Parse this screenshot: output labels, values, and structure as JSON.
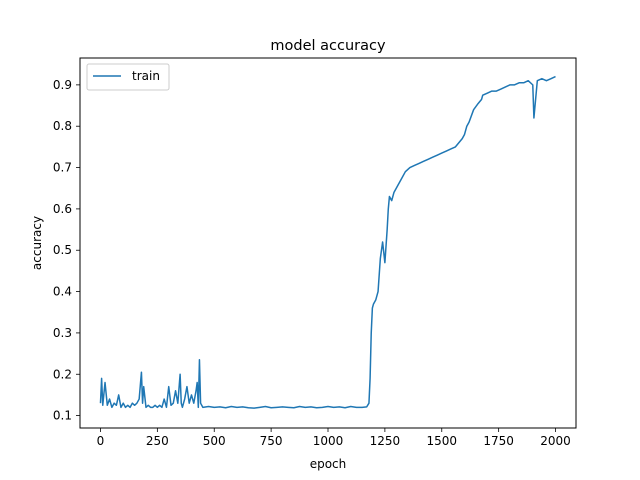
{
  "chart_data": {
    "type": "line",
    "title": "model accuracy",
    "xlabel": "epoch",
    "ylabel": "accuracy",
    "xlim": [
      -90,
      2090
    ],
    "ylim": [
      0.07,
      0.965
    ],
    "xticks": [
      0,
      250,
      500,
      750,
      1000,
      1250,
      1500,
      1750,
      2000
    ],
    "yticks": [
      0.1,
      0.2,
      0.3,
      0.4,
      0.5,
      0.6,
      0.7,
      0.8,
      0.9
    ],
    "ytick_labels": [
      "0.1",
      "0.2",
      "0.3",
      "0.4",
      "0.5",
      "0.6",
      "0.7",
      "0.8",
      "0.9"
    ],
    "grid": false,
    "legend_position": "top-left",
    "series": [
      {
        "name": "train",
        "color": "#1f77b4",
        "x": [
          0,
          5,
          10,
          20,
          30,
          40,
          50,
          60,
          70,
          80,
          90,
          100,
          110,
          120,
          130,
          140,
          150,
          160,
          170,
          180,
          185,
          190,
          200,
          210,
          220,
          230,
          240,
          250,
          260,
          270,
          280,
          290,
          300,
          310,
          320,
          330,
          340,
          350,
          355,
          360,
          370,
          380,
          390,
          400,
          410,
          420,
          425,
          430,
          435,
          440,
          450,
          475,
          500,
          525,
          550,
          575,
          600,
          625,
          650,
          675,
          700,
          725,
          750,
          775,
          800,
          825,
          850,
          875,
          900,
          925,
          950,
          975,
          1000,
          1025,
          1050,
          1075,
          1100,
          1125,
          1150,
          1170,
          1180,
          1185,
          1190,
          1195,
          1200,
          1210,
          1220,
          1230,
          1240,
          1250,
          1260,
          1265,
          1270,
          1280,
          1290,
          1300,
          1310,
          1320,
          1340,
          1360,
          1380,
          1400,
          1420,
          1440,
          1460,
          1480,
          1500,
          1520,
          1540,
          1560,
          1575,
          1590,
          1600,
          1610,
          1620,
          1640,
          1660,
          1675,
          1680,
          1700,
          1720,
          1740,
          1760,
          1780,
          1800,
          1820,
          1840,
          1860,
          1880,
          1900,
          1905,
          1920,
          1940,
          1960,
          1980,
          2000
        ],
        "values": [
          0.13,
          0.19,
          0.125,
          0.18,
          0.125,
          0.14,
          0.12,
          0.13,
          0.125,
          0.15,
          0.12,
          0.13,
          0.12,
          0.125,
          0.12,
          0.13,
          0.125,
          0.13,
          0.14,
          0.205,
          0.13,
          0.17,
          0.12,
          0.125,
          0.12,
          0.12,
          0.125,
          0.12,
          0.125,
          0.12,
          0.14,
          0.12,
          0.17,
          0.125,
          0.13,
          0.16,
          0.13,
          0.2,
          0.13,
          0.12,
          0.14,
          0.17,
          0.13,
          0.15,
          0.13,
          0.16,
          0.18,
          0.12,
          0.235,
          0.13,
          0.12,
          0.122,
          0.12,
          0.121,
          0.119,
          0.122,
          0.12,
          0.121,
          0.119,
          0.118,
          0.12,
          0.122,
          0.119,
          0.12,
          0.121,
          0.12,
          0.119,
          0.122,
          0.12,
          0.121,
          0.119,
          0.12,
          0.122,
          0.12,
          0.121,
          0.119,
          0.122,
          0.12,
          0.12,
          0.121,
          0.13,
          0.19,
          0.3,
          0.36,
          0.37,
          0.38,
          0.4,
          0.48,
          0.52,
          0.47,
          0.55,
          0.6,
          0.63,
          0.62,
          0.64,
          0.65,
          0.66,
          0.67,
          0.69,
          0.7,
          0.705,
          0.71,
          0.715,
          0.72,
          0.725,
          0.73,
          0.735,
          0.74,
          0.745,
          0.75,
          0.76,
          0.77,
          0.78,
          0.8,
          0.81,
          0.84,
          0.855,
          0.865,
          0.875,
          0.88,
          0.885,
          0.885,
          0.89,
          0.895,
          0.9,
          0.9,
          0.905,
          0.905,
          0.91,
          0.9,
          0.82,
          0.91,
          0.915,
          0.91,
          0.915,
          0.92
        ]
      }
    ]
  }
}
